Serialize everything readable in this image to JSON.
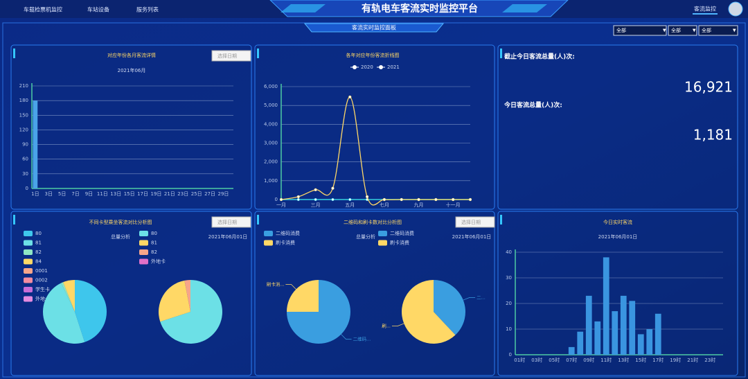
{
  "header": {
    "nav": [
      "车载检票机监控",
      "车站设备",
      "服务列表"
    ],
    "title": "有轨电车客流实时监控平台",
    "user_menu": "客流监控"
  },
  "subheader": {
    "title": "客流实时监控面板",
    "filters": [
      "全部",
      "全部",
      "全部"
    ]
  },
  "stats": {
    "total_label": "截止今日客流总量(人)次:",
    "total": "16,921",
    "today_label": "今日客流总量(人)次:",
    "today": "1,181"
  },
  "chart_data": [
    {
      "type": "bar",
      "title": "对应年份各月客流详情",
      "button": "选择日期",
      "subtitle": "2021年06月",
      "categories": [
        "1日",
        null,
        "3日",
        null,
        "5日",
        null,
        "7日",
        null,
        "9日",
        null,
        "11日",
        null,
        "13日",
        null,
        "15日",
        null,
        "17日",
        null,
        "19日",
        null,
        "21日",
        null,
        "23日",
        null,
        "25日",
        null,
        "27日",
        null,
        "29日",
        null
      ],
      "values": [
        180,
        0,
        0,
        0,
        0,
        0,
        0,
        0,
        0,
        0,
        0,
        0,
        0,
        0,
        0,
        0,
        0,
        0,
        0,
        0,
        0,
        0,
        0,
        0,
        0,
        0,
        0,
        0,
        0,
        0
      ],
      "color": "#4aa3e8",
      "ylim": [
        0,
        210
      ],
      "yticks": [
        0,
        30,
        60,
        90,
        120,
        150,
        180,
        210
      ],
      "grid": true
    },
    {
      "type": "line",
      "title": "各年对应年份客流折线图",
      "categories": [
        "一月",
        null,
        "三月",
        null,
        "五月",
        null,
        "七月",
        null,
        "九月",
        null,
        "十一月",
        null
      ],
      "series": [
        {
          "name": "2020",
          "color": "#29c4e8",
          "values": [
            0,
            0,
            0,
            0,
            0,
            0,
            0,
            0,
            0,
            0,
            0,
            0
          ]
        },
        {
          "name": "2021",
          "color": "#ffd866",
          "values": [
            0,
            150,
            520,
            600,
            5450,
            150,
            0,
            0,
            0,
            0,
            0,
            0
          ]
        }
      ],
      "ylim": [
        0,
        6000
      ],
      "yticks": [
        0,
        {
          "value": 1000,
          "label": "1,000"
        },
        {
          "value": 2000,
          "label": "2,000"
        },
        {
          "value": 3000,
          "label": "3,000"
        },
        {
          "value": 4000,
          "label": "4,000"
        },
        {
          "value": 5000,
          "label": "5,000"
        },
        {
          "value": 6000,
          "label": "6,000"
        }
      ],
      "grid": true
    },
    {
      "type": "pie",
      "title": "不同卡型乘坐客流对比分析图",
      "button": "选择日期",
      "subtitle": "总量分析",
      "date": "2021年06月01日",
      "pies": [
        {
          "labels": [
            "80",
            "81",
            "82",
            "84",
            "0001",
            "0002",
            "学生卡",
            "外地卡"
          ],
          "colors": [
            "#3ec6ec",
            "#6ce0e6",
            "#8ee6c4",
            "#ffd866",
            "#f6a58a",
            "#f28ca0",
            "#c86dd7",
            "#e58be0"
          ],
          "values": [
            45,
            48,
            1,
            6,
            0,
            0,
            0,
            0
          ]
        },
        {
          "labels": [
            "80",
            "81",
            "82",
            "外地卡"
          ],
          "colors": [
            "#6ce0e6",
            "#ffd866",
            "#f6a58a",
            "#e070c8"
          ],
          "values": [
            70,
            27,
            3,
            0
          ]
        }
      ]
    },
    {
      "type": "pie",
      "title": "二维码和刷卡数对比分析图",
      "button": "选择日期",
      "subtitle": "总量分析",
      "date": "2021年06月01日",
      "pies": [
        {
          "labels": [
            "二维码消费",
            "刷卡消费"
          ],
          "colors": [
            "#3a9ee0",
            "#ffd866"
          ],
          "values": [
            75,
            25
          ],
          "slice_labels": [
            "二维码...",
            "刷卡消..."
          ]
        },
        {
          "labels": [
            "二维码消费",
            "刷卡消费"
          ],
          "colors": [
            "#3a9ee0",
            "#ffd866"
          ],
          "values": [
            38,
            62
          ],
          "slice_labels": [
            "二...",
            "刷..."
          ]
        }
      ]
    },
    {
      "type": "bar",
      "title": "今日实时客流",
      "subtitle": "2021年06月01日",
      "categories": [
        "01时",
        null,
        "03时",
        null,
        "05时",
        null,
        "07时",
        null,
        "09时",
        null,
        "11时",
        null,
        "13时",
        null,
        "15时",
        null,
        "17时",
        null,
        "19时",
        null,
        "21时",
        null,
        "23时",
        null
      ],
      "values": [
        0,
        0,
        0,
        0,
        0,
        0,
        3,
        9,
        23,
        13,
        38,
        17,
        23,
        21,
        8,
        10,
        16,
        0,
        0,
        0,
        0,
        0,
        0,
        0
      ],
      "color": "#3a95e0",
      "ylim": [
        0,
        40
      ],
      "yticks": [
        0,
        10,
        20,
        30,
        40
      ],
      "grid": true
    }
  ]
}
